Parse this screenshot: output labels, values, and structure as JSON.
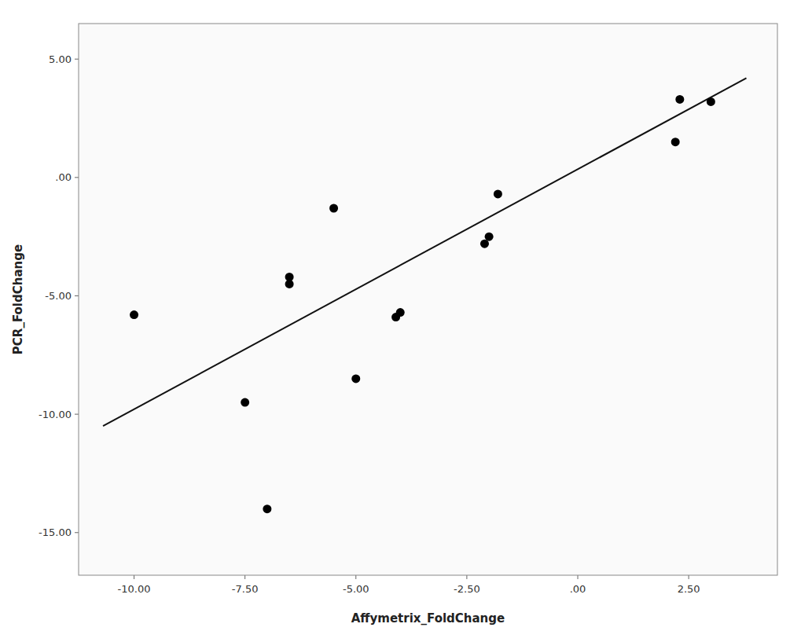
{
  "chart_data": {
    "type": "scatter",
    "xlabel": "Affymetrix_FoldChange",
    "ylabel": "PCR_FoldChange",
    "series": [
      {
        "type": "scatter",
        "marker": "circle",
        "color": "#000000",
        "x": [
          -10.0,
          -7.5,
          -7.0,
          -6.5,
          -6.5,
          -5.5,
          -5.0,
          -4.0,
          -4.1,
          -2.0,
          -2.1,
          -1.8,
          2.2,
          2.3,
          3.0
        ],
        "values": [
          -5.8,
          -9.5,
          -14.0,
          -4.5,
          -4.2,
          -1.3,
          -8.5,
          -5.7,
          -5.9,
          -2.5,
          -2.8,
          -0.7,
          1.5,
          3.3,
          3.2
        ]
      },
      {
        "type": "line",
        "line_style": "solid",
        "color": "#111111",
        "x": [
          -10.7,
          3.8
        ],
        "values": [
          -10.5,
          4.2
        ]
      }
    ],
    "xlim": [
      -11.25,
      4.5
    ],
    "ylim": [
      -16.8,
      6.5
    ],
    "xticks": [
      {
        "value": -10.0,
        "label": "-10.00"
      },
      {
        "value": -7.5,
        "label": "-7.50"
      },
      {
        "value": -5.0,
        "label": "-5.00"
      },
      {
        "value": -2.5,
        "label": "-2.50"
      },
      {
        "value": 0.0,
        "label": ".00"
      },
      {
        "value": 2.5,
        "label": "2.50"
      }
    ],
    "yticks": [
      {
        "value": -15.0,
        "label": "-15.00"
      },
      {
        "value": -10.0,
        "label": "-10.00"
      },
      {
        "value": -5.0,
        "label": "-5.00"
      },
      {
        "value": 0.0,
        "label": ".00"
      },
      {
        "value": 5.0,
        "label": "5.00"
      }
    ],
    "grid": false
  }
}
